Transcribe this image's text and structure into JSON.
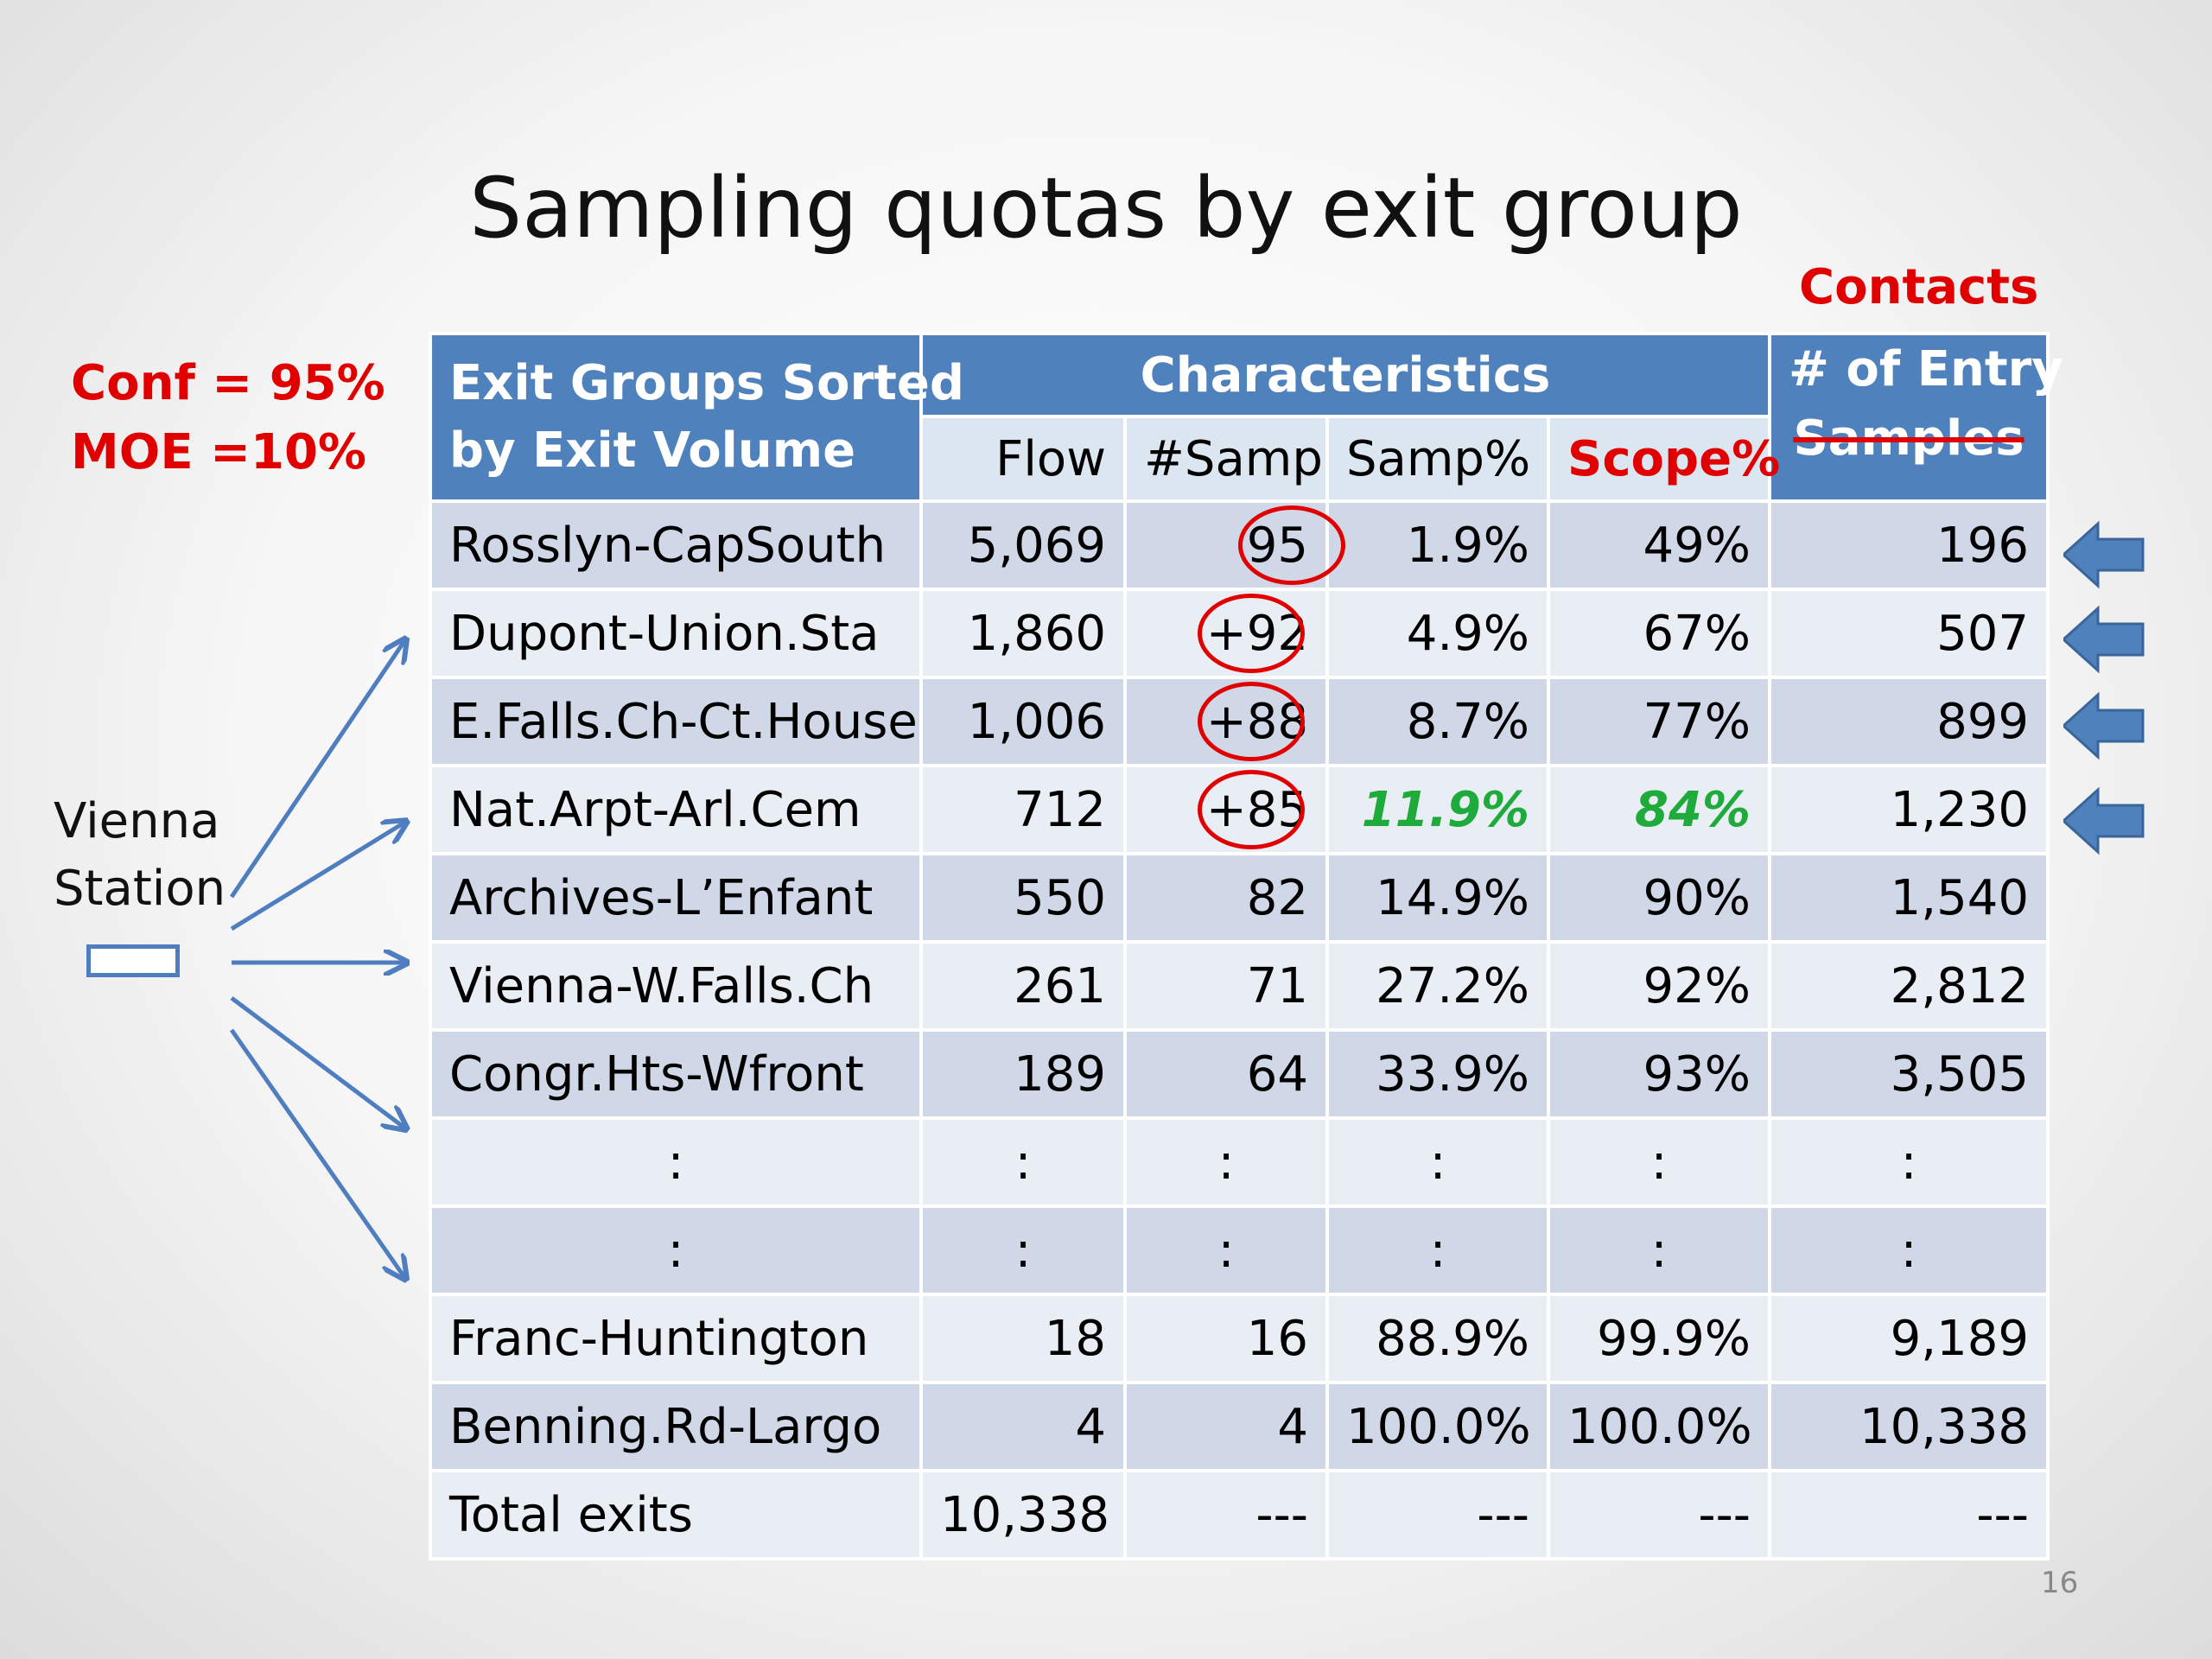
{
  "title": "Sampling quotas by exit group",
  "contacts_label": "Contacts",
  "params": {
    "conf": "Conf = 95%",
    "moe": "MOE =10%"
  },
  "station": {
    "line1": "Vienna",
    "line2": "Station"
  },
  "page_number": "16",
  "headers": {
    "group_line1": "Exit Groups Sorted",
    "group_line2": "by Exit Volume",
    "characteristics": "Characteristics",
    "entry_line1": "# of Entry",
    "entry_line2_struck": "Samples",
    "flow": "Flow",
    "samp": "#Samp",
    "samp_pct": "Samp%",
    "scope_pct": "Scope%"
  },
  "rows": [
    {
      "name": "Rosslyn-CapSouth",
      "flow": "5,069",
      "samp": "95",
      "samp_pct": "1.9%",
      "scope": "49%",
      "entry": "196"
    },
    {
      "name": "Dupont-Union.Sta",
      "flow": "1,860",
      "samp": "+92",
      "samp_pct": "4.9%",
      "scope": "67%",
      "entry": "507"
    },
    {
      "name": "E.Falls.Ch-Ct.House",
      "flow": "1,006",
      "samp": "+88",
      "samp_pct": "8.7%",
      "scope": "77%",
      "entry": "899"
    },
    {
      "name": "Nat.Arpt-Arl.Cem",
      "flow": "712",
      "samp": "+85",
      "samp_pct": "11.9%",
      "scope": "84%",
      "entry": "1,230"
    },
    {
      "name": "Archives-L’Enfant",
      "flow": "550",
      "samp": "82",
      "samp_pct": "14.9%",
      "scope": "90%",
      "entry": "1,540"
    },
    {
      "name": "Vienna-W.Falls.Ch",
      "flow": "261",
      "samp": "71",
      "samp_pct": "27.2%",
      "scope": "92%",
      "entry": "2,812"
    },
    {
      "name": "Congr.Hts-Wfront",
      "flow": "189",
      "samp": "64",
      "samp_pct": "33.9%",
      "scope": "93%",
      "entry": "3,505"
    },
    {
      "name": ":",
      "flow": ":",
      "samp": ":",
      "samp_pct": ":",
      "scope": ":",
      "entry": ":"
    },
    {
      "name": ":",
      "flow": ":",
      "samp": ":",
      "samp_pct": ":",
      "scope": ":",
      "entry": ":"
    },
    {
      "name": "Franc-Huntington",
      "flow": "18",
      "samp": "16",
      "samp_pct": "88.9%",
      "scope": "99.9%",
      "entry": "9,189"
    },
    {
      "name": "Benning.Rd-Largo",
      "flow": "4",
      "samp": "4",
      "samp_pct": "100.0%",
      "scope": "100.0%",
      "entry": "10,338"
    },
    {
      "name": "Total exits",
      "flow": "10,338",
      "samp": "---",
      "samp_pct": "---",
      "scope": "---",
      "entry": "---"
    }
  ],
  "colors": {
    "header": "#4f81bd",
    "accent_red": "#e00000",
    "accent_green": "#1faa3c",
    "arrow": "#4f7ec0"
  }
}
